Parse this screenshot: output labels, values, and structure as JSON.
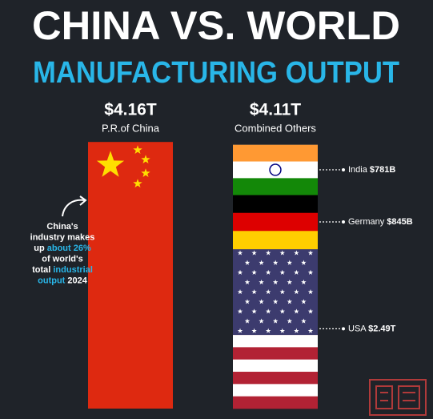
{
  "chart_data": {
    "type": "bar",
    "title": "CHINA VS. WORLD",
    "subtitle": "MANUFACTURING OUTPUT",
    "categories": [
      "P.R.of China",
      "Combined Others"
    ],
    "values": [
      4.16,
      4.11
    ],
    "value_labels": [
      "$4.16T",
      "$4.11T"
    ],
    "color": "#de2910",
    "segments": [
      {
        "name": "USA",
        "value": 2.49,
        "value_label": "$2.49T"
      },
      {
        "name": "Germany",
        "value": 0.845,
        "value_label": "$845B"
      },
      {
        "name": "India",
        "value": 0.781,
        "value_label": "$781B"
      }
    ],
    "annotation": [
      [
        {
          "text": "China's"
        }
      ],
      [
        {
          "text": "industry makes"
        }
      ],
      [
        {
          "text": "up "
        },
        {
          "text": "about 26%",
          "highlight": true
        }
      ],
      [
        {
          "text": "of world's"
        }
      ],
      [
        {
          "text": "total "
        },
        {
          "text": "industrial",
          "highlight": true
        }
      ],
      [
        {
          "text": "output",
          "highlight": true
        },
        {
          "text": " 2024"
        }
      ]
    ],
    "highlight_color": "#29b6e8"
  }
}
